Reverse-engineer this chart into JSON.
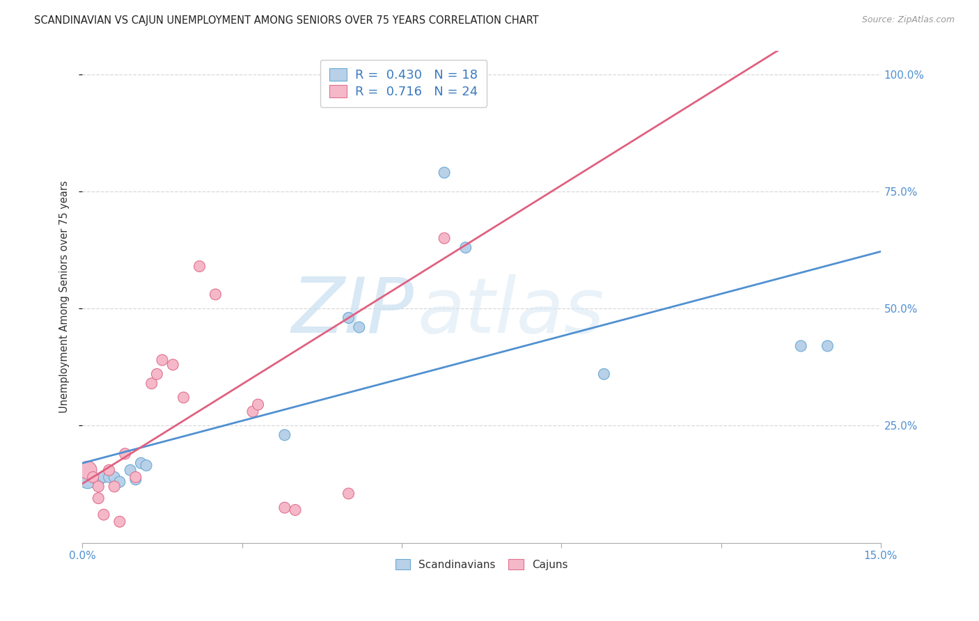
{
  "title": "SCANDINAVIAN VS CAJUN UNEMPLOYMENT AMONG SENIORS OVER 75 YEARS CORRELATION CHART",
  "source": "Source: ZipAtlas.com",
  "ylabel": "Unemployment Among Seniors over 75 years",
  "xlim": [
    0.0,
    0.15
  ],
  "ylim": [
    0.0,
    1.05
  ],
  "watermark_zip": "ZIP",
  "watermark_atlas": "atlas",
  "legend_blue_r": "0.430",
  "legend_blue_n": "18",
  "legend_pink_r": "0.716",
  "legend_pink_n": "24",
  "blue_fill": "#b8d0e8",
  "pink_fill": "#f5b8c8",
  "blue_edge": "#6aaad4",
  "pink_edge": "#e07090",
  "blue_line": "#5090d0",
  "pink_line": "#e06080",
  "tick_color": "#5090d0",
  "grid_color": "#d8d8d8",
  "scandinavian_x": [
    0.001,
    0.003,
    0.004,
    0.005,
    0.006,
    0.007,
    0.009,
    0.01,
    0.011,
    0.012,
    0.038,
    0.05,
    0.052,
    0.068,
    0.072,
    0.098,
    0.135,
    0.14
  ],
  "scandinavian_y": [
    0.135,
    0.13,
    0.14,
    0.14,
    0.14,
    0.13,
    0.155,
    0.135,
    0.17,
    0.165,
    0.23,
    0.48,
    0.46,
    0.79,
    0.63,
    0.36,
    0.42,
    0.42
  ],
  "scandinavian_size": [
    350,
    130,
    130,
    130,
    130,
    130,
    130,
    130,
    130,
    130,
    130,
    130,
    130,
    130,
    130,
    130,
    130,
    130
  ],
  "cajun_x": [
    0.001,
    0.002,
    0.003,
    0.003,
    0.004,
    0.005,
    0.006,
    0.007,
    0.008,
    0.01,
    0.013,
    0.014,
    0.015,
    0.017,
    0.019,
    0.022,
    0.025,
    0.032,
    0.033,
    0.038,
    0.04,
    0.05,
    0.068,
    0.07
  ],
  "cajun_y": [
    0.155,
    0.14,
    0.12,
    0.095,
    0.06,
    0.155,
    0.12,
    0.045,
    0.19,
    0.14,
    0.34,
    0.36,
    0.39,
    0.38,
    0.31,
    0.59,
    0.53,
    0.28,
    0.295,
    0.075,
    0.07,
    0.105,
    0.65,
    1.005
  ],
  "cajun_size": [
    350,
    130,
    130,
    130,
    130,
    130,
    130,
    130,
    130,
    130,
    130,
    130,
    130,
    130,
    130,
    130,
    130,
    130,
    130,
    130,
    130,
    130,
    130,
    130
  ],
  "ytick_vals": [
    0.25,
    0.5,
    0.75,
    1.0
  ],
  "ytick_labels": [
    "25.0%",
    "50.0%",
    "75.0%",
    "100.0%"
  ],
  "xtick_vals": [
    0.0,
    0.03,
    0.06,
    0.09,
    0.12,
    0.15
  ],
  "xtick_labels_show": [
    "0.0%",
    "",
    "",
    "",
    "",
    "15.0%"
  ]
}
